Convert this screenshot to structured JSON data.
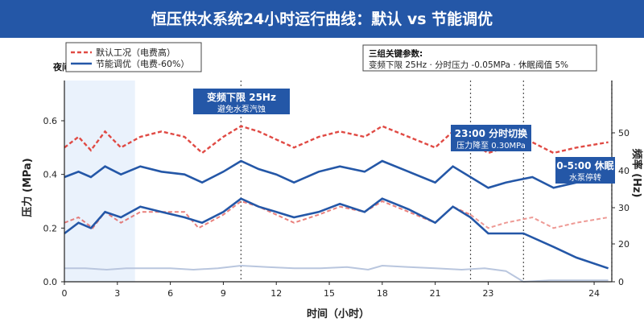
{
  "header": {
    "title": "恒压供水系统24小时运行曲线：默认 vs 节能调优",
    "bg": "#2457a7"
  },
  "legend": {
    "items": [
      {
        "label": "默认工况（电费高）",
        "color": "#e04a44"
      },
      {
        "label": "节能调优（电费-60%）",
        "color": "#2457a7"
      }
    ]
  },
  "night_band_label": "夜间",
  "params_box": {
    "title": "三组关键参数:",
    "text": "变频下限 25Hz · 分时压力 -0.05MPa · 休眠阈值 5%"
  },
  "annotations": [
    {
      "title": "变频下限 25Hz",
      "subtitle": "避免水泵汽蚀"
    },
    {
      "title": "23:00 分时切换",
      "subtitle": "压力降至 0.30MPa"
    },
    {
      "title": "0-5:00 休眠",
      "subtitle": "水泵停转"
    }
  ],
  "colors": {
    "default": "#e04a44",
    "default_light": "#ee9a95",
    "optimized": "#2457a7",
    "freq": "#b9c6de",
    "night_band": "#eaf2fc",
    "annotation_bg": "#2457a7"
  },
  "chart_data": {
    "type": "line",
    "xlabel": "时间（小时）",
    "ylabel_left": "压力 (MPa)",
    "ylabel_right": "频率 (Hz)",
    "x_ticks": [
      "0",
      "3",
      "6",
      "9",
      "12",
      "15",
      "18",
      "21",
      "23",
      "24"
    ],
    "y_ticks_left": [
      "0.0",
      "0.2",
      "0.4",
      "0.6"
    ],
    "y_ticks_right": [
      "0",
      "20",
      "30",
      "40",
      "50"
    ],
    "night_band_hours": [
      0,
      4
    ],
    "guide_lines_hours": [
      10,
      23,
      26,
      31
    ],
    "series": [
      {
        "name": "默认工况（电费高）",
        "role": "pressure_upper",
        "style": "dashed",
        "points": [
          [
            0,
            0.5
          ],
          [
            0.8,
            0.54
          ],
          [
            1.5,
            0.49
          ],
          [
            2.3,
            0.56
          ],
          [
            3.2,
            0.5
          ],
          [
            4.3,
            0.54
          ],
          [
            5.5,
            0.56
          ],
          [
            6.8,
            0.54
          ],
          [
            7.8,
            0.48
          ],
          [
            9,
            0.54
          ],
          [
            10,
            0.58
          ],
          [
            11,
            0.56
          ],
          [
            12,
            0.53
          ],
          [
            13,
            0.5
          ],
          [
            14.4,
            0.54
          ],
          [
            15.6,
            0.56
          ],
          [
            17,
            0.54
          ],
          [
            18,
            0.58
          ],
          [
            19.5,
            0.54
          ],
          [
            21,
            0.5
          ],
          [
            22,
            0.56
          ],
          [
            23,
            0.52
          ],
          [
            24,
            0.48
          ],
          [
            25,
            0.5
          ],
          [
            26.5,
            0.52
          ],
          [
            27.7,
            0.48
          ],
          [
            29,
            0.5
          ],
          [
            30.8,
            0.52
          ]
        ]
      },
      {
        "name": "默认工况（电费高）",
        "role": "pressure_lower",
        "style": "dashed",
        "points": [
          [
            0,
            0.22
          ],
          [
            0.8,
            0.24
          ],
          [
            1.6,
            0.2
          ],
          [
            2.3,
            0.26
          ],
          [
            3.2,
            0.22
          ],
          [
            4.3,
            0.26
          ],
          [
            5.5,
            0.26
          ],
          [
            6.8,
            0.26
          ],
          [
            7.6,
            0.2
          ],
          [
            9,
            0.25
          ],
          [
            10,
            0.3
          ],
          [
            11,
            0.28
          ],
          [
            12,
            0.25
          ],
          [
            13,
            0.22
          ],
          [
            14.4,
            0.25
          ],
          [
            15.6,
            0.28
          ],
          [
            17,
            0.26
          ],
          [
            18,
            0.3
          ],
          [
            19.5,
            0.26
          ],
          [
            21,
            0.22
          ],
          [
            22,
            0.28
          ],
          [
            23,
            0.25
          ],
          [
            24,
            0.2
          ],
          [
            25,
            0.22
          ],
          [
            26.5,
            0.24
          ],
          [
            27.7,
            0.2
          ],
          [
            29,
            0.22
          ],
          [
            30.8,
            0.24
          ]
        ]
      },
      {
        "name": "节能调优（电费-60%）",
        "role": "pressure_upper",
        "style": "solid",
        "points": [
          [
            0,
            0.39
          ],
          [
            0.8,
            0.41
          ],
          [
            1.5,
            0.39
          ],
          [
            2.3,
            0.43
          ],
          [
            3.2,
            0.4
          ],
          [
            4.3,
            0.43
          ],
          [
            5.5,
            0.41
          ],
          [
            6.8,
            0.4
          ],
          [
            7.8,
            0.37
          ],
          [
            9,
            0.41
          ],
          [
            10,
            0.45
          ],
          [
            11,
            0.42
          ],
          [
            12,
            0.4
          ],
          [
            13,
            0.37
          ],
          [
            14.4,
            0.41
          ],
          [
            15.6,
            0.43
          ],
          [
            17,
            0.41
          ],
          [
            18,
            0.45
          ],
          [
            19.5,
            0.41
          ],
          [
            21,
            0.37
          ],
          [
            22,
            0.43
          ],
          [
            23,
            0.39
          ],
          [
            24,
            0.35
          ],
          [
            25,
            0.37
          ],
          [
            26.5,
            0.39
          ],
          [
            27.7,
            0.35
          ],
          [
            29,
            0.37
          ],
          [
            30.8,
            0.39
          ]
        ]
      },
      {
        "name": "节能调优（电费-60%）",
        "role": "pressure_lower",
        "style": "solid",
        "points": [
          [
            0,
            0.18
          ],
          [
            0.8,
            0.22
          ],
          [
            1.5,
            0.2
          ],
          [
            2.3,
            0.26
          ],
          [
            3.2,
            0.24
          ],
          [
            4.3,
            0.28
          ],
          [
            5.5,
            0.26
          ],
          [
            6.8,
            0.24
          ],
          [
            7.8,
            0.22
          ],
          [
            9,
            0.26
          ],
          [
            10,
            0.31
          ],
          [
            11,
            0.28
          ],
          [
            12,
            0.26
          ],
          [
            13,
            0.24
          ],
          [
            14.4,
            0.26
          ],
          [
            15.6,
            0.29
          ],
          [
            17,
            0.26
          ],
          [
            18,
            0.31
          ],
          [
            19.5,
            0.27
          ],
          [
            21,
            0.22
          ],
          [
            22,
            0.28
          ],
          [
            23,
            0.24
          ],
          [
            24,
            0.18
          ],
          [
            25,
            0.18
          ],
          [
            26,
            0.18
          ],
          [
            27.7,
            0.13
          ],
          [
            29,
            0.09
          ],
          [
            30.8,
            0.05
          ]
        ]
      },
      {
        "name": "频率",
        "role": "frequency",
        "style": "solid",
        "points": [
          [
            0,
            0.05
          ],
          [
            1.2,
            0.05
          ],
          [
            2.4,
            0.045
          ],
          [
            3.5,
            0.05
          ],
          [
            4.6,
            0.05
          ],
          [
            6,
            0.05
          ],
          [
            7.3,
            0.045
          ],
          [
            8.7,
            0.05
          ],
          [
            10,
            0.06
          ],
          [
            11.5,
            0.055
          ],
          [
            13,
            0.05
          ],
          [
            14.5,
            0.05
          ],
          [
            16,
            0.055
          ],
          [
            17.2,
            0.045
          ],
          [
            18,
            0.06
          ],
          [
            19.5,
            0.055
          ],
          [
            21,
            0.05
          ],
          [
            22.5,
            0.045
          ],
          [
            23.8,
            0.05
          ],
          [
            25,
            0.04
          ],
          [
            26,
            0.0
          ],
          [
            27.5,
            0.005
          ],
          [
            29,
            0.005
          ],
          [
            30.8,
            0.005
          ]
        ]
      }
    ]
  }
}
